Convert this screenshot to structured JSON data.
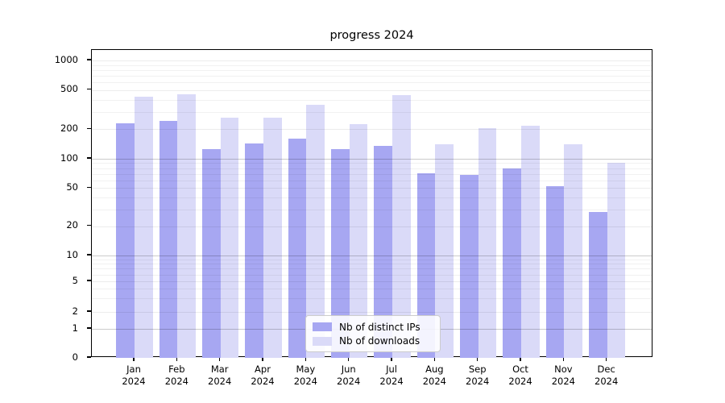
{
  "chart_data": {
    "type": "bar",
    "title": "progress 2024",
    "categories": [
      "Jan 2024",
      "Feb 2024",
      "Mar 2024",
      "Apr 2024",
      "May 2024",
      "Jun 2024",
      "Jul 2024",
      "Aug 2024",
      "Sep 2024",
      "Oct 2024",
      "Nov 2024",
      "Dec 2024"
    ],
    "month_labels": [
      "Jan",
      "Feb",
      "Mar",
      "Apr",
      "May",
      "Jun",
      "Jul",
      "Aug",
      "Sep",
      "Oct",
      "Nov",
      "Dec"
    ],
    "year_label": "2024",
    "series": [
      {
        "name": "Nb of distinct IPs",
        "color": "#a7a7f2",
        "values": [
          230,
          245,
          125,
          143,
          160,
          125,
          136,
          71,
          68,
          79,
          52,
          28
        ]
      },
      {
        "name": "Nb of downloads",
        "color": "#dadaf8",
        "values": [
          430,
          455,
          260,
          260,
          355,
          225,
          445,
          140,
          205,
          215,
          140,
          90
        ]
      }
    ],
    "yscale": "symlog",
    "yticks": [
      1000,
      500,
      200,
      100,
      50,
      20,
      10,
      5,
      2,
      1,
      0
    ],
    "major_decades": [
      1,
      10,
      100
    ],
    "minor_grid_values": [
      3,
      4,
      6,
      7,
      8,
      9,
      30,
      40,
      60,
      70,
      80,
      90,
      300,
      400,
      600,
      700,
      800,
      900
    ],
    "ylim": [
      0,
      1000
    ],
    "grid": true,
    "legend_position": "lower center"
  }
}
